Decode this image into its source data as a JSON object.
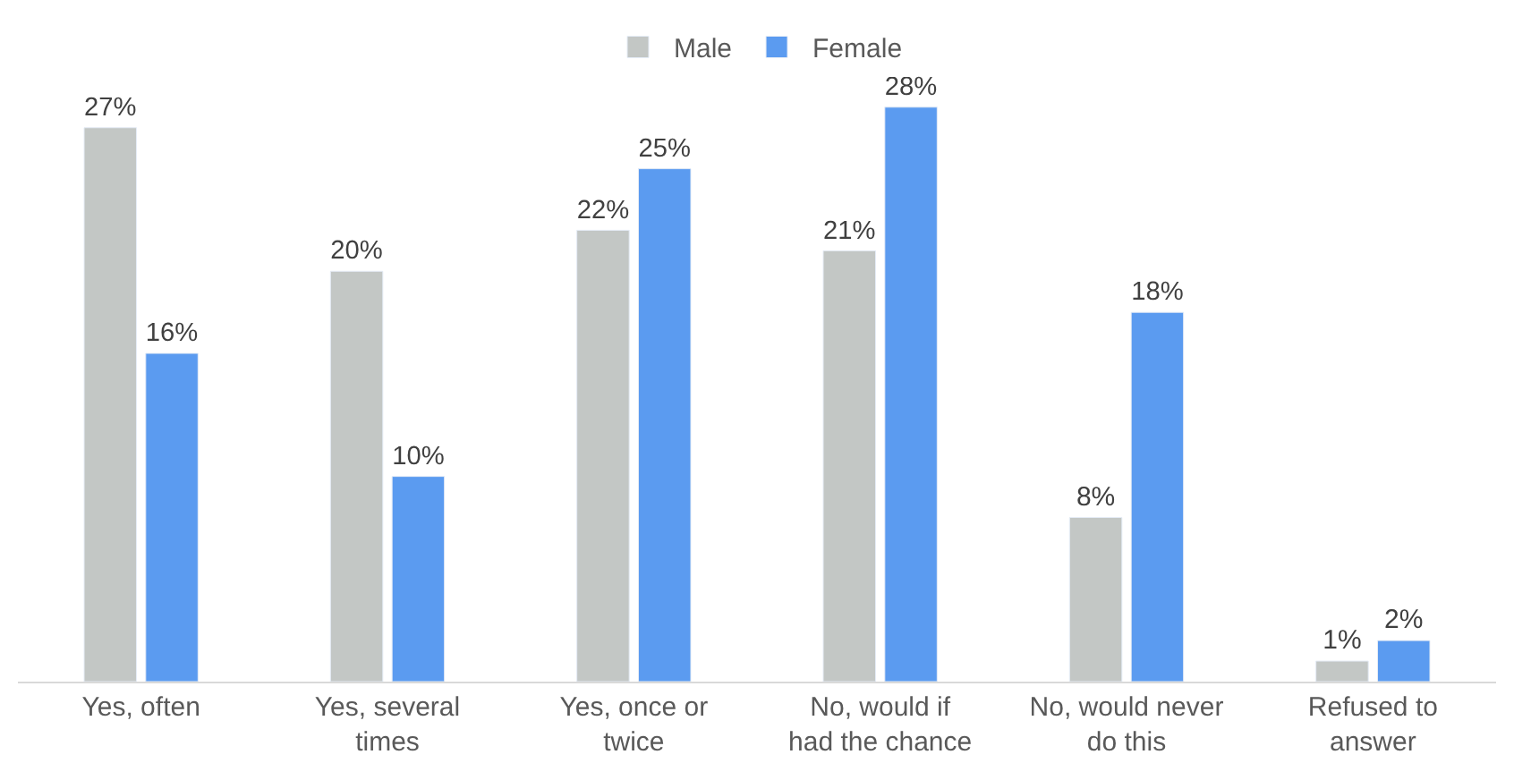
{
  "chart_data": {
    "type": "bar",
    "categories": [
      "Yes, often",
      "Yes, several times",
      "Yes, once or twice",
      "No, would if had the chance",
      "No, would never do this",
      "Refused to answer"
    ],
    "series": [
      {
        "name": "Male",
        "color": "#c3c7c5",
        "values": [
          27,
          20,
          22,
          21,
          8,
          1
        ],
        "value_labels": [
          "27%",
          "20%",
          "22%",
          "21%",
          "8%",
          "1%"
        ]
      },
      {
        "name": "Female",
        "color": "#5b9bf0",
        "values": [
          16,
          10,
          25,
          28,
          18,
          2
        ],
        "value_labels": [
          "16%",
          "10%",
          "25%",
          "28%",
          "18%",
          "2%"
        ]
      }
    ],
    "tick_labels": "x",
    "legend": "top"
  }
}
